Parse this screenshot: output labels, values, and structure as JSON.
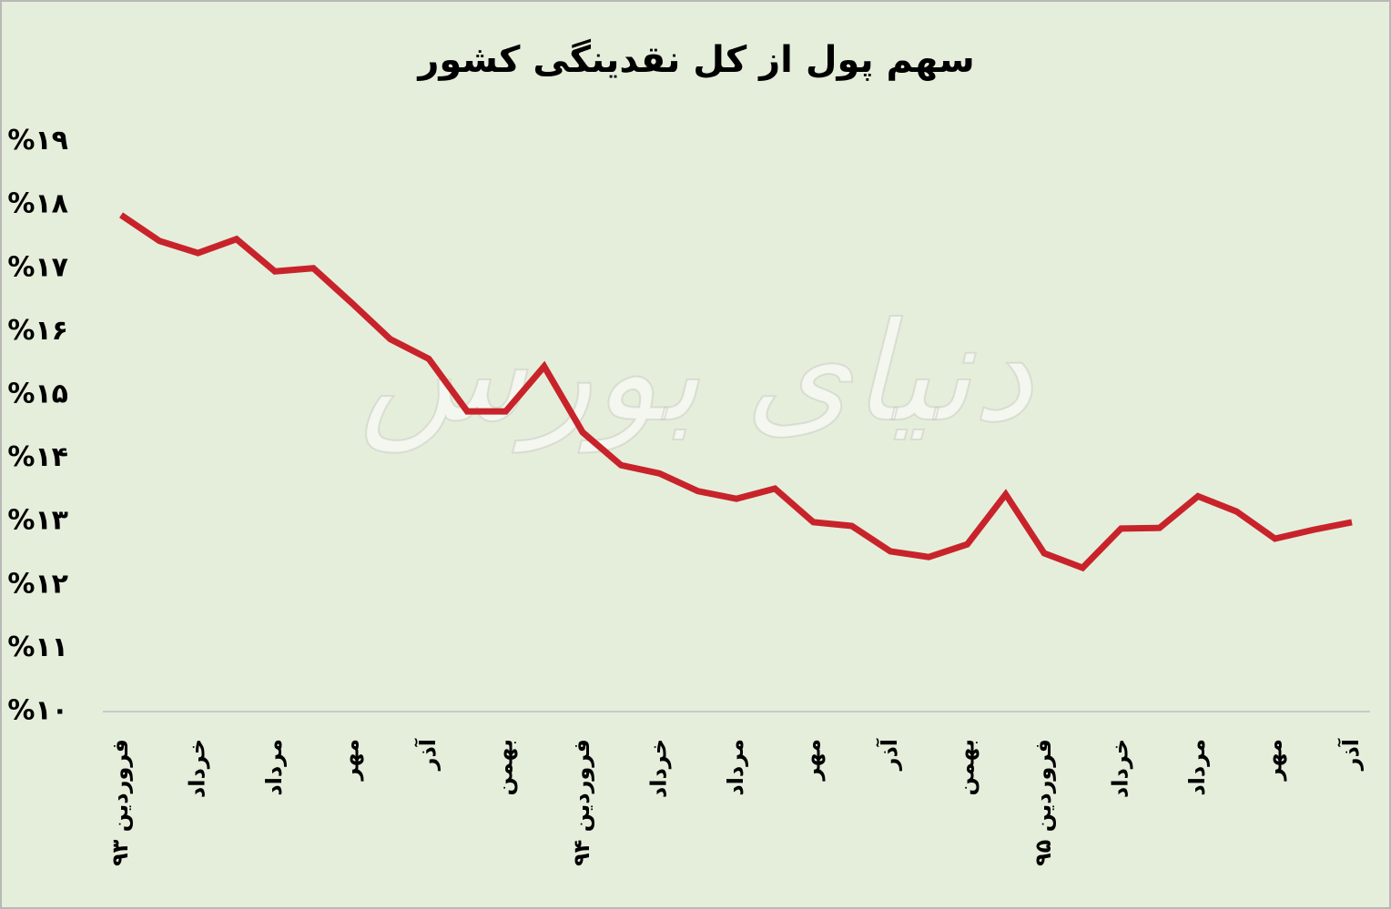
{
  "chart_data": {
    "type": "line",
    "title": "سهم پول از کل نقدینگی کشور",
    "watermark": "دنیای بورس",
    "categories": [
      "فروردین ۹۳",
      null,
      "خرداد",
      null,
      "مرداد",
      null,
      "مهر",
      null,
      "آذر",
      null,
      "بهمن",
      null,
      "فروردین ۹۴",
      null,
      "خرداد",
      null,
      "مرداد",
      null,
      "مهر",
      null,
      "آذر",
      null,
      "بهمن",
      null,
      "فروردین ۹۵",
      null,
      "خرداد",
      null,
      "مرداد",
      null,
      "مهر",
      null,
      "آذر"
    ],
    "values": [
      17.84,
      17.43,
      17.24,
      17.46,
      16.95,
      17.0,
      16.45,
      15.88,
      15.57,
      14.74,
      14.74,
      15.45,
      14.41,
      13.89,
      13.76,
      13.48,
      13.36,
      13.52,
      12.99,
      12.93,
      12.53,
      12.44,
      12.64,
      13.43,
      12.5,
      12.27,
      12.89,
      12.9,
      13.4,
      13.16,
      12.73,
      12.87,
      12.99
    ],
    "color": "#c8232b",
    "ylim": [
      10,
      19
    ],
    "yticks": [
      {
        "value": 10,
        "label": "%۱۰"
      },
      {
        "value": 11,
        "label": "%۱۱"
      },
      {
        "value": 12,
        "label": "%۱۲"
      },
      {
        "value": 13,
        "label": "%۱۳"
      },
      {
        "value": 14,
        "label": "%۱۴"
      },
      {
        "value": 15,
        "label": "%۱۵"
      },
      {
        "value": 16,
        "label": "%۱۶"
      },
      {
        "value": 17,
        "label": "%۱۷"
      },
      {
        "value": 18,
        "label": "%۱۸"
      },
      {
        "value": 19,
        "label": "%۱۹"
      }
    ],
    "grid": false
  }
}
